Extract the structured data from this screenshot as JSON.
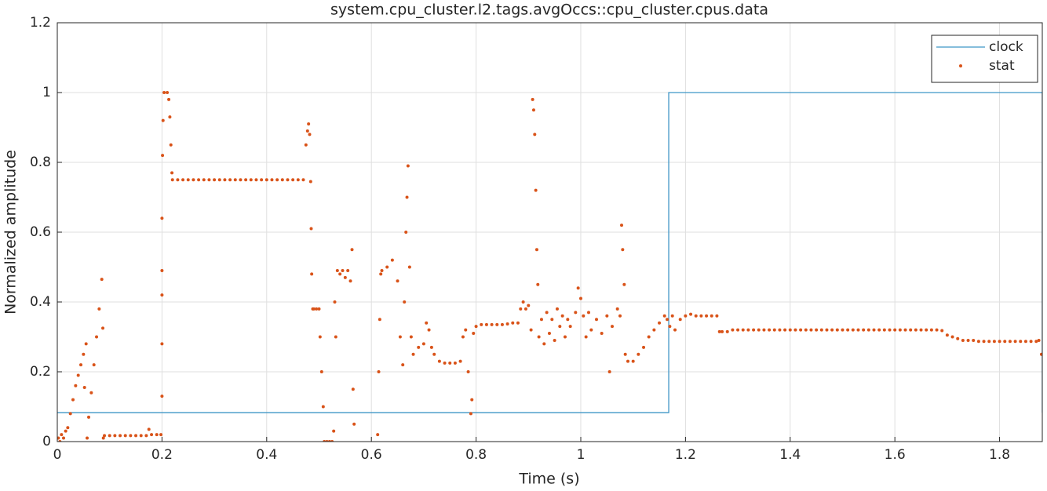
{
  "chart_data": {
    "type": "line",
    "title": "system.cpu_cluster.l2.tags.avgOccs::cpu_cluster.cpus.data",
    "xlabel": "Time (s)",
    "ylabel": "Normalized amplitude",
    "xlim": [
      0,
      1.8816
    ],
    "ylim": [
      0,
      1.2
    ],
    "xticks": [
      0,
      0.2,
      0.4,
      0.6,
      0.8,
      1,
      1.2,
      1.4,
      1.6,
      1.8
    ],
    "yticks": [
      0,
      0.2,
      0.4,
      0.6,
      0.8,
      1,
      1.2
    ],
    "grid": true,
    "legend": "northeast",
    "series": [
      {
        "name": "clock",
        "color": "#3f96c6",
        "style": "line",
        "x": [
          0,
          1.168,
          1.168,
          1.8816,
          1.8816
        ],
        "values": [
          0.083,
          0.083,
          1,
          1,
          0.083
        ]
      },
      {
        "name": "stat",
        "color": "#d95319",
        "style": "markers",
        "x": [
          0.002,
          0.005,
          0.008,
          0.012,
          0.016,
          0.02,
          0.025,
          0.03,
          0.035,
          0.04,
          0.045,
          0.05,
          0.055,
          0.052,
          0.057,
          0.06,
          0.065,
          0.07,
          0.075,
          0.08,
          0.085,
          0.087,
          0.088,
          0.09,
          0.1,
          0.11,
          0.12,
          0.13,
          0.14,
          0.15,
          0.16,
          0.17,
          0.175,
          0.18,
          0.19,
          0.198,
          0.2,
          0.2,
          0.2,
          0.2,
          0.2,
          0.201,
          0.202,
          0.204,
          0.21,
          0.213,
          0.215,
          0.217,
          0.219,
          0.22,
          0.23,
          0.24,
          0.25,
          0.26,
          0.27,
          0.28,
          0.29,
          0.3,
          0.31,
          0.32,
          0.33,
          0.34,
          0.35,
          0.36,
          0.37,
          0.38,
          0.39,
          0.4,
          0.41,
          0.42,
          0.43,
          0.44,
          0.45,
          0.46,
          0.47,
          0.475,
          0.478,
          0.48,
          0.482,
          0.484,
          0.485,
          0.486,
          0.488,
          0.49,
          0.495,
          0.5,
          0.502,
          0.505,
          0.508,
          0.51,
          0.515,
          0.52,
          0.525,
          0.528,
          0.53,
          0.532,
          0.535,
          0.54,
          0.545,
          0.55,
          0.555,
          0.56,
          0.563,
          0.565,
          0.567,
          0.612,
          0.614,
          0.616,
          0.618,
          0.62,
          0.63,
          0.64,
          0.65,
          0.655,
          0.66,
          0.663,
          0.666,
          0.668,
          0.67,
          0.673,
          0.676,
          0.68,
          0.69,
          0.7,
          0.705,
          0.71,
          0.715,
          0.72,
          0.73,
          0.74,
          0.75,
          0.76,
          0.77,
          0.775,
          0.78,
          0.785,
          0.79,
          0.792,
          0.795,
          0.8,
          0.81,
          0.82,
          0.83,
          0.84,
          0.85,
          0.86,
          0.87,
          0.88,
          0.885,
          0.89,
          0.895,
          0.9,
          0.905,
          0.908,
          0.91,
          0.912,
          0.914,
          0.916,
          0.918,
          0.92,
          0.925,
          0.93,
          0.935,
          0.94,
          0.945,
          0.95,
          0.955,
          0.96,
          0.965,
          0.97,
          0.975,
          0.98,
          0.99,
          0.995,
          1,
          1.005,
          1.01,
          1.015,
          1.02,
          1.03,
          1.04,
          1.05,
          1.055,
          1.06,
          1.07,
          1.075,
          1.078,
          1.08,
          1.083,
          1.085,
          1.09,
          1.1,
          1.11,
          1.12,
          1.13,
          1.14,
          1.15,
          1.16,
          1.165,
          1.17,
          1.175,
          1.18,
          1.19,
          1.2,
          1.21,
          1.22,
          1.23,
          1.24,
          1.25,
          1.26,
          1.265,
          1.27,
          1.28,
          1.29,
          1.3,
          1.31,
          1.32,
          1.33,
          1.34,
          1.35,
          1.36,
          1.37,
          1.38,
          1.39,
          1.4,
          1.41,
          1.42,
          1.43,
          1.44,
          1.45,
          1.46,
          1.47,
          1.48,
          1.49,
          1.5,
          1.51,
          1.52,
          1.53,
          1.54,
          1.55,
          1.56,
          1.57,
          1.58,
          1.59,
          1.6,
          1.61,
          1.62,
          1.63,
          1.64,
          1.65,
          1.66,
          1.67,
          1.68,
          1.69,
          1.7,
          1.71,
          1.72,
          1.73,
          1.74,
          1.75,
          1.76,
          1.77,
          1.78,
          1.79,
          1.8,
          1.81,
          1.82,
          1.83,
          1.84,
          1.85,
          1.86,
          1.87,
          1.875,
          1.88
        ],
        "values": [
          0.01,
          0,
          0.02,
          0.01,
          0.03,
          0.04,
          0.08,
          0.12,
          0.16,
          0.19,
          0.22,
          0.25,
          0.28,
          0.155,
          0.01,
          0.07,
          0.14,
          0.22,
          0.3,
          0.38,
          0.465,
          0.325,
          0.01,
          0.017,
          0.017,
          0.017,
          0.017,
          0.017,
          0.017,
          0.017,
          0.017,
          0.017,
          0.035,
          0.02,
          0.02,
          0.02,
          0.13,
          0.28,
          0.42,
          0.49,
          0.64,
          0.82,
          0.92,
          1,
          1,
          0.98,
          0.93,
          0.85,
          0.77,
          0.75,
          0.75,
          0.75,
          0.75,
          0.75,
          0.75,
          0.75,
          0.75,
          0.75,
          0.75,
          0.75,
          0.75,
          0.75,
          0.75,
          0.75,
          0.75,
          0.75,
          0.75,
          0.75,
          0.75,
          0.75,
          0.75,
          0.75,
          0.75,
          0.75,
          0.75,
          0.85,
          0.89,
          0.91,
          0.88,
          0.745,
          0.61,
          0.48,
          0.38,
          0.38,
          0.38,
          0.38,
          0.3,
          0.2,
          0.1,
          0,
          0,
          0,
          0,
          0.03,
          0.4,
          0.3,
          0.49,
          0.48,
          0.49,
          0.47,
          0.49,
          0.46,
          0.55,
          0.15,
          0.05,
          0.02,
          0.2,
          0.35,
          0.48,
          0.49,
          0.5,
          0.52,
          0.46,
          0.3,
          0.22,
          0.4,
          0.6,
          0.7,
          0.79,
          0.5,
          0.3,
          0.25,
          0.27,
          0.28,
          0.34,
          0.32,
          0.27,
          0.25,
          0.23,
          0.225,
          0.225,
          0.225,
          0.23,
          0.3,
          0.32,
          0.2,
          0.08,
          0.12,
          0.31,
          0.33,
          0.335,
          0.335,
          0.335,
          0.335,
          0.335,
          0.337,
          0.34,
          0.34,
          0.38,
          0.4,
          0.38,
          0.39,
          0.32,
          0.98,
          0.95,
          0.88,
          0.72,
          0.55,
          0.45,
          0.3,
          0.35,
          0.28,
          0.37,
          0.31,
          0.35,
          0.29,
          0.38,
          0.33,
          0.36,
          0.3,
          0.35,
          0.33,
          0.37,
          0.44,
          0.41,
          0.36,
          0.3,
          0.37,
          0.32,
          0.35,
          0.31,
          0.36,
          0.2,
          0.33,
          0.38,
          0.36,
          0.62,
          0.55,
          0.45,
          0.25,
          0.23,
          0.23,
          0.25,
          0.27,
          0.3,
          0.32,
          0.34,
          0.36,
          0.35,
          0.33,
          0.36,
          0.32,
          0.35,
          0.36,
          0.365,
          0.36,
          0.36,
          0.36,
          0.36,
          0.36,
          0.315,
          0.315,
          0.315,
          0.32,
          0.32,
          0.32,
          0.32,
          0.32,
          0.32,
          0.32,
          0.32,
          0.32,
          0.32,
          0.32,
          0.32,
          0.32,
          0.32,
          0.32,
          0.32,
          0.32,
          0.32,
          0.32,
          0.32,
          0.32,
          0.32,
          0.32,
          0.32,
          0.32,
          0.32,
          0.32,
          0.32,
          0.32,
          0.32,
          0.32,
          0.32,
          0.32,
          0.32,
          0.32,
          0.32,
          0.32,
          0.32,
          0.32,
          0.32,
          0.318,
          0.305,
          0.3,
          0.295,
          0.29,
          0.29,
          0.29,
          0.287,
          0.287,
          0.287,
          0.287,
          0.287,
          0.287,
          0.287,
          0.287,
          0.287,
          0.287,
          0.287,
          0.287,
          0.29,
          0.25
        ]
      }
    ]
  }
}
